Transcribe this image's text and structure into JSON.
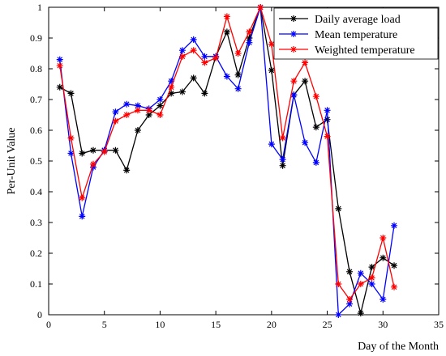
{
  "chart_data": {
    "type": "line",
    "xlabel": "Day of the Month",
    "ylabel": "Per-Unit Value",
    "xlim": [
      0,
      35
    ],
    "ylim": [
      0,
      1
    ],
    "xticks": [
      0,
      5,
      10,
      15,
      20,
      25,
      30,
      35
    ],
    "yticks": [
      0,
      0.1,
      0.2,
      0.3,
      0.4,
      0.5,
      0.6,
      0.7,
      0.8,
      0.9,
      1
    ],
    "ytick_labels": [
      "0",
      "0.1",
      "0.2",
      "0.3",
      "0.4",
      "0.5",
      "0.6",
      "0.7",
      "0.8",
      "0.9",
      "1"
    ],
    "grid": false,
    "legend_position": "top-right",
    "marker": "asterisk",
    "x": [
      1,
      2,
      3,
      4,
      5,
      6,
      7,
      8,
      9,
      10,
      11,
      12,
      13,
      14,
      15,
      16,
      17,
      18,
      19,
      20,
      21,
      22,
      23,
      24,
      25,
      26,
      27,
      28,
      29,
      30,
      31
    ],
    "series": [
      {
        "name": "Daily average load",
        "color": "#000000",
        "values": [
          0.74,
          0.72,
          0.525,
          0.535,
          0.535,
          0.535,
          0.47,
          0.6,
          0.65,
          0.68,
          0.72,
          0.725,
          0.77,
          0.72,
          0.84,
          0.92,
          0.78,
          0.9,
          1.0,
          0.795,
          0.485,
          0.715,
          0.76,
          0.61,
          0.635,
          0.345,
          0.14,
          0.005,
          0.155,
          0.185,
          0.16
        ]
      },
      {
        "name": "Mean temperature",
        "color": "#0000ff",
        "values": [
          0.83,
          0.525,
          0.32,
          0.48,
          0.535,
          0.66,
          0.685,
          0.68,
          0.67,
          0.7,
          0.76,
          0.86,
          0.895,
          0.84,
          0.84,
          0.775,
          0.735,
          0.885,
          1.0,
          0.555,
          0.505,
          0.715,
          0.56,
          0.495,
          0.665,
          0.0,
          0.035,
          0.135,
          0.1,
          0.05,
          0.29
        ]
      },
      {
        "name": "Weighted temperature",
        "color": "#ff0000",
        "values": [
          0.81,
          0.575,
          0.38,
          0.49,
          0.53,
          0.63,
          0.65,
          0.665,
          0.665,
          0.65,
          0.74,
          0.84,
          0.86,
          0.82,
          0.835,
          0.97,
          0.85,
          0.92,
          1.0,
          0.88,
          0.575,
          0.76,
          0.82,
          0.71,
          0.58,
          0.1,
          0.05,
          0.1,
          0.12,
          0.25,
          0.09
        ]
      }
    ]
  }
}
